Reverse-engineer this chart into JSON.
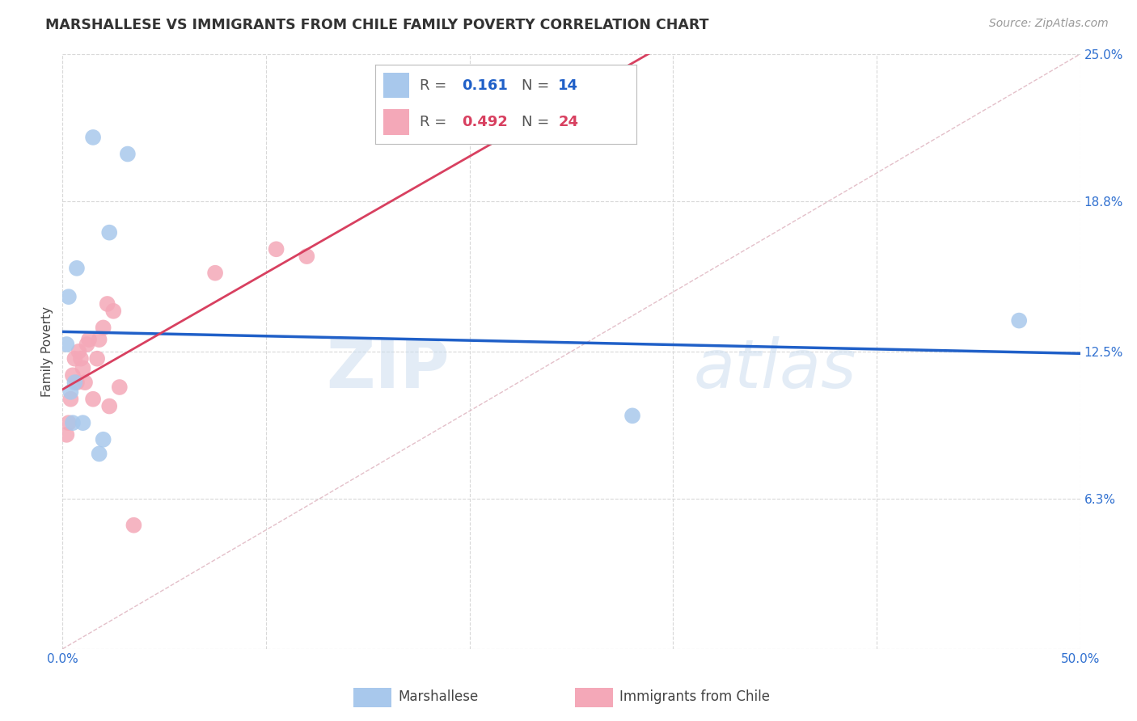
{
  "title": "MARSHALLESE VS IMMIGRANTS FROM CHILE FAMILY POVERTY CORRELATION CHART",
  "source": "Source: ZipAtlas.com",
  "ylabel": "Family Poverty",
  "xlim": [
    0,
    50
  ],
  "ylim": [
    0,
    25
  ],
  "blue_color": "#A8C8EC",
  "pink_color": "#F4A8B8",
  "blue_line_color": "#2060C8",
  "pink_line_color": "#D84060",
  "ref_line_color": "#DDB0BC",
  "blue_legend_color": "#2060C8",
  "pink_legend_color": "#D84060",
  "tick_color": "#3070D0",
  "legend_R_blue": "0.161",
  "legend_N_blue": "14",
  "legend_R_pink": "0.492",
  "legend_N_pink": "24",
  "blue_x": [
    0.3,
    0.7,
    1.5,
    2.3,
    3.2,
    0.2,
    0.4,
    0.5,
    0.6,
    1.0,
    1.8,
    28.0,
    47.0,
    2.0
  ],
  "blue_y": [
    14.8,
    16.0,
    21.5,
    17.5,
    20.8,
    12.8,
    10.8,
    9.5,
    11.2,
    9.5,
    8.2,
    9.8,
    13.8,
    8.8
  ],
  "pink_x": [
    0.2,
    0.4,
    0.5,
    0.6,
    0.8,
    0.9,
    1.0,
    1.1,
    1.3,
    1.5,
    1.7,
    2.0,
    2.2,
    2.5,
    2.8,
    0.3,
    0.7,
    1.2,
    1.8,
    2.3,
    3.5,
    7.5,
    10.5,
    12.0
  ],
  "pink_y": [
    9.0,
    10.5,
    11.5,
    12.2,
    12.5,
    12.2,
    11.8,
    11.2,
    13.0,
    10.5,
    12.2,
    13.5,
    14.5,
    14.2,
    11.0,
    9.5,
    11.2,
    12.8,
    13.0,
    10.2,
    5.2,
    15.8,
    16.8,
    16.5
  ],
  "title_fontsize": 12.5,
  "tick_fontsize": 11,
  "axis_label_fontsize": 11,
  "source_fontsize": 10
}
